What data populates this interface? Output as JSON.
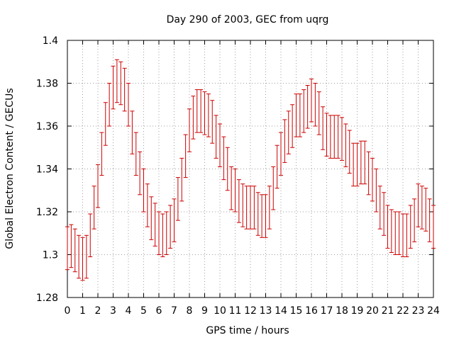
{
  "chart_data": {
    "type": "scatter",
    "title": "Day 290 of 2003, GEC from uqrg",
    "xlabel": "GPS time / hours",
    "ylabel": "Global Electron Content / GECUs",
    "xlim": [
      0,
      24
    ],
    "ylim": [
      1.28,
      1.4
    ],
    "xticks": [
      0,
      1,
      2,
      3,
      4,
      5,
      6,
      7,
      8,
      9,
      10,
      11,
      12,
      13,
      14,
      15,
      16,
      17,
      18,
      19,
      20,
      21,
      22,
      23,
      24
    ],
    "yticks": [
      1.28,
      1.3,
      1.32,
      1.34,
      1.36,
      1.38,
      1.4
    ],
    "ytick_labels": [
      "1.28",
      "1.3",
      "1.32",
      "1.34",
      "1.36",
      "1.38",
      "1.4"
    ],
    "grid": true,
    "error_bar_color": "#cc0000",
    "error_half_width": 0.01,
    "series": [
      {
        "name": "GEC",
        "x": [
          0,
          0.25,
          0.5,
          0.75,
          1,
          1.25,
          1.5,
          1.75,
          2,
          2.25,
          2.5,
          2.75,
          3,
          3.25,
          3.5,
          3.75,
          4,
          4.25,
          4.5,
          4.75,
          5,
          5.25,
          5.5,
          5.75,
          6,
          6.25,
          6.5,
          6.75,
          7,
          7.25,
          7.5,
          7.75,
          8,
          8.25,
          8.5,
          8.75,
          9,
          9.25,
          9.5,
          9.75,
          10,
          10.25,
          10.5,
          10.75,
          11,
          11.25,
          11.5,
          11.75,
          12,
          12.25,
          12.5,
          12.75,
          13,
          13.25,
          13.5,
          13.75,
          14,
          14.25,
          14.5,
          14.75,
          15,
          15.25,
          15.5,
          15.75,
          16,
          16.25,
          16.5,
          16.75,
          17,
          17.25,
          17.5,
          17.75,
          18,
          18.25,
          18.5,
          18.75,
          19,
          19.25,
          19.5,
          19.75,
          20,
          20.25,
          20.5,
          20.75,
          21,
          21.25,
          21.5,
          21.75,
          22,
          22.25,
          22.5,
          22.75,
          23,
          23.25,
          23.5,
          23.75,
          24
        ],
        "y": [
          1.303,
          1.304,
          1.302,
          1.299,
          1.298,
          1.299,
          1.309,
          1.322,
          1.332,
          1.347,
          1.361,
          1.37,
          1.378,
          1.381,
          1.38,
          1.377,
          1.37,
          1.357,
          1.347,
          1.338,
          1.33,
          1.323,
          1.317,
          1.314,
          1.31,
          1.309,
          1.31,
          1.313,
          1.316,
          1.326,
          1.335,
          1.346,
          1.358,
          1.364,
          1.367,
          1.367,
          1.366,
          1.365,
          1.362,
          1.355,
          1.351,
          1.345,
          1.34,
          1.331,
          1.33,
          1.325,
          1.323,
          1.322,
          1.322,
          1.322,
          1.319,
          1.318,
          1.318,
          1.322,
          1.331,
          1.341,
          1.347,
          1.353,
          1.357,
          1.36,
          1.365,
          1.365,
          1.367,
          1.369,
          1.372,
          1.37,
          1.366,
          1.359,
          1.356,
          1.355,
          1.355,
          1.355,
          1.354,
          1.351,
          1.348,
          1.342,
          1.342,
          1.343,
          1.343,
          1.338,
          1.335,
          1.33,
          1.322,
          1.319,
          1.313,
          1.311,
          1.31,
          1.31,
          1.309,
          1.309,
          1.313,
          1.316,
          1.323,
          1.322,
          1.321,
          1.316,
          1.313
        ]
      }
    ]
  }
}
